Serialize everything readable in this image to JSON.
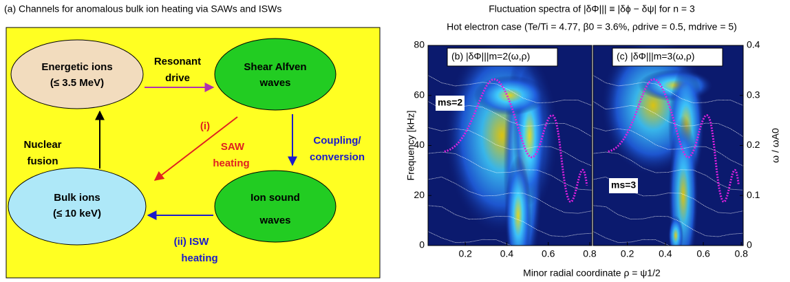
{
  "caption": "(a) Channels for anomalous bulk ion heating via SAWs and ISWs",
  "diagram": {
    "nodes": [
      {
        "label": [
          "Energetic ions",
          "(≤ 3.5 MeV)"
        ]
      },
      {
        "label": [
          "Shear Alfven",
          "waves"
        ]
      },
      {
        "label": [
          "Bulk ions",
          "(≤ 10 keV)"
        ]
      },
      {
        "label": [
          "Ion sound",
          "waves"
        ]
      }
    ],
    "edges": [
      {
        "label": [
          "Resonant",
          "drive"
        ]
      },
      {
        "label": [
          "(i)",
          "SAW",
          "heating"
        ]
      },
      {
        "label": [
          "Coupling/",
          "conversion"
        ]
      },
      {
        "label": [
          "(ii) ISW",
          "heating"
        ]
      },
      {
        "label": [
          "Nuclear",
          "fusion"
        ]
      }
    ]
  },
  "figure": {
    "title": "Fluctuation spectra of |δΦ||| ≡ |δϕ − δψ| for n = 3",
    "subtitle": "Hot electron case (Te/Ti = 4.77, β0 = 3.6%, ρdrive = 0.5, mdrive = 5)",
    "xlabel": "Minor radial coordinate ρ = ψ1/2"
  },
  "chart_data": [
    {
      "type": "heatmap",
      "title": "(b) |δΦ|||m=2(ω,ρ)",
      "annotation": "ms=2",
      "ylabel": "Frequency [kHz]",
      "xlim": [
        0.02,
        0.81
      ],
      "xticks": [
        0.2,
        0.4,
        0.6,
        0.8
      ],
      "ylim": [
        0,
        80
      ],
      "yticks": [
        0,
        20,
        40,
        60,
        80
      ]
    },
    {
      "type": "heatmap",
      "title": "(c) |δΦ|||m=3(ω,ρ)",
      "annotation": "ms=3",
      "y2label": "ω / ωA0",
      "xlim": [
        0.02,
        0.81
      ],
      "xticks": [
        0.2,
        0.4,
        0.6,
        0.8
      ],
      "y2lim": [
        0,
        0.4
      ],
      "y2ticks": [
        0,
        0.1,
        0.2,
        0.3,
        0.4
      ]
    }
  ]
}
